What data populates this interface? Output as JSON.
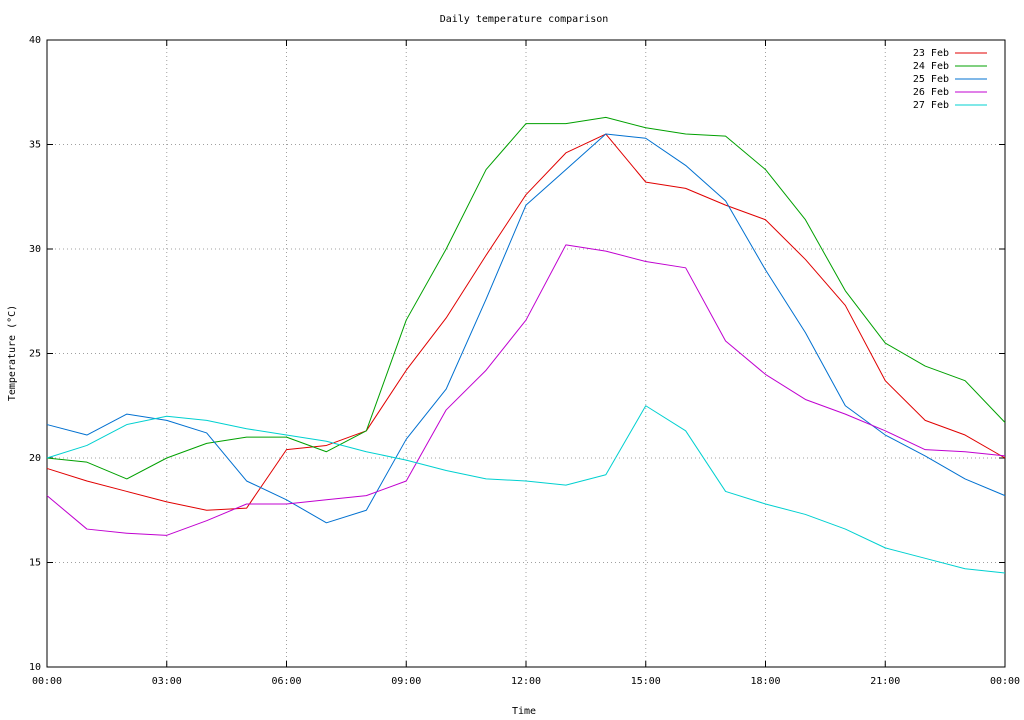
{
  "chart_data": {
    "type": "line",
    "title": "Daily temperature comparison",
    "x_label": "Time",
    "y_label": "Temperature (°C)",
    "x": [
      0,
      1,
      2,
      3,
      4,
      5,
      6,
      7,
      8,
      9,
      10,
      11,
      12,
      13,
      14,
      15,
      16,
      17,
      18,
      19,
      20,
      21,
      22,
      23,
      24
    ],
    "xlim": [
      0,
      24
    ],
    "xticks": [
      {
        "value": 0,
        "label": "00:00"
      },
      {
        "value": 3,
        "label": "03:00"
      },
      {
        "value": 6,
        "label": "06:00"
      },
      {
        "value": 9,
        "label": "09:00"
      },
      {
        "value": 12,
        "label": "12:00"
      },
      {
        "value": 15,
        "label": "15:00"
      },
      {
        "value": 18,
        "label": "18:00"
      },
      {
        "value": 21,
        "label": "21:00"
      },
      {
        "value": 24,
        "label": "00:00"
      }
    ],
    "ylim": [
      10,
      40
    ],
    "yticks": [
      10,
      15,
      20,
      25,
      30,
      35,
      40
    ],
    "grid": true,
    "legend": "top-right",
    "series": [
      {
        "name": "23 Feb",
        "color": "#e00000",
        "values": [
          19.5,
          18.9,
          18.4,
          17.9,
          17.5,
          17.6,
          20.4,
          20.6,
          21.3,
          24.2,
          26.7,
          29.7,
          32.6,
          34.6,
          35.5,
          33.2,
          32.9,
          32.1,
          31.4,
          29.5,
          27.3,
          23.7,
          21.8,
          21.1,
          20.0
        ]
      },
      {
        "name": "24 Feb",
        "color": "#00a000",
        "values": [
          20.0,
          19.8,
          19.0,
          20.0,
          20.7,
          21.0,
          21.0,
          20.3,
          21.3,
          26.6,
          30.0,
          33.8,
          36.0,
          36.0,
          36.3,
          35.8,
          35.5,
          35.4,
          33.8,
          31.4,
          28.0,
          25.5,
          24.4,
          23.7,
          21.7
        ]
      },
      {
        "name": "25 Feb",
        "color": "#0070d0",
        "values": [
          21.6,
          21.1,
          22.1,
          21.8,
          21.2,
          18.9,
          18.0,
          16.9,
          17.5,
          20.9,
          23.3,
          27.6,
          32.1,
          33.8,
          35.5,
          35.3,
          34.0,
          32.3,
          29.0,
          26.0,
          22.5,
          21.1,
          20.1,
          19.0,
          18.2
        ]
      },
      {
        "name": "26 Feb",
        "color": "#c000d0",
        "values": [
          18.2,
          16.6,
          16.4,
          16.3,
          17.0,
          17.8,
          17.8,
          18.0,
          18.2,
          18.9,
          22.3,
          24.2,
          26.6,
          30.2,
          29.9,
          29.4,
          29.1,
          25.6,
          24.0,
          22.8,
          22.1,
          21.3,
          20.4,
          20.3,
          20.1
        ]
      },
      {
        "name": "27 Feb",
        "color": "#00d0d0",
        "values": [
          20.0,
          20.6,
          21.6,
          22.0,
          21.8,
          21.4,
          21.1,
          20.8,
          20.3,
          19.9,
          19.4,
          19.0,
          18.9,
          18.7,
          19.2,
          22.5,
          21.3,
          18.4,
          17.8,
          17.3,
          16.6,
          15.7,
          15.2,
          14.7,
          14.5
        ]
      }
    ]
  }
}
